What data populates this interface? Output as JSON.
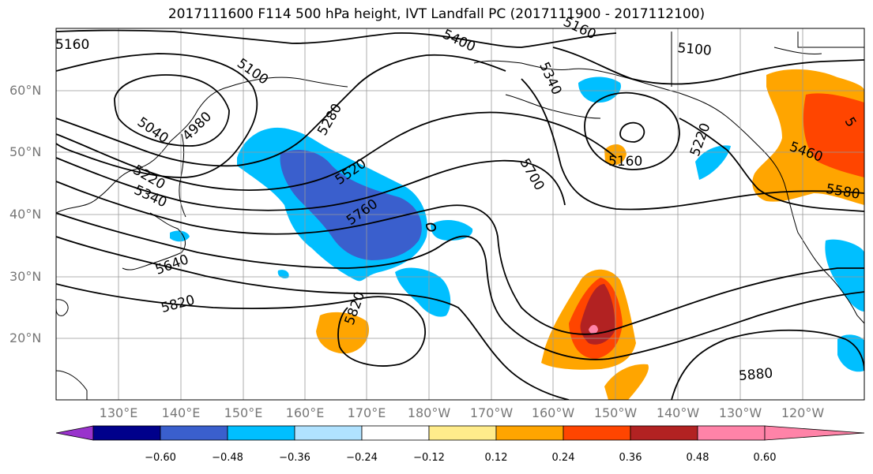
{
  "title": "2017111600 F114 500 hPa height, IVT Landfall PC (2017111900 - 2017112100)",
  "lat_labels": [
    "60°N",
    "50°N",
    "40°N",
    "30°N",
    "20°N"
  ],
  "lon_labels": [
    "130°E",
    "140°E",
    "150°E",
    "160°E",
    "170°E",
    "180°W",
    "170°W",
    "160°W",
    "150°W",
    "140°W",
    "130°W",
    "120°W"
  ],
  "contour_labels": [
    "5160",
    "5400",
    "5160",
    "5100",
    "5100",
    "5340",
    "4980",
    "5280",
    "5040",
    "5520",
    "5220",
    "5160",
    "5220",
    "5460",
    "5340",
    "5760",
    "5580",
    "5700",
    "5640",
    "5820",
    "5820",
    "5880",
    "5"
  ],
  "colorbar": {
    "colors": [
      "#9933cc",
      "#00008b",
      "#3a5fcd",
      "#00bfff",
      "#b0e2ff",
      "#ffffff",
      "#ffec8b",
      "#ffa500",
      "#ff4500",
      "#b22222",
      "#ff83a8"
    ],
    "ticks": [
      "−0.60",
      "−0.48",
      "−0.36",
      "−0.24",
      "−0.12",
      "0.12",
      "0.24",
      "0.36",
      "0.48",
      "0.60"
    ]
  }
}
